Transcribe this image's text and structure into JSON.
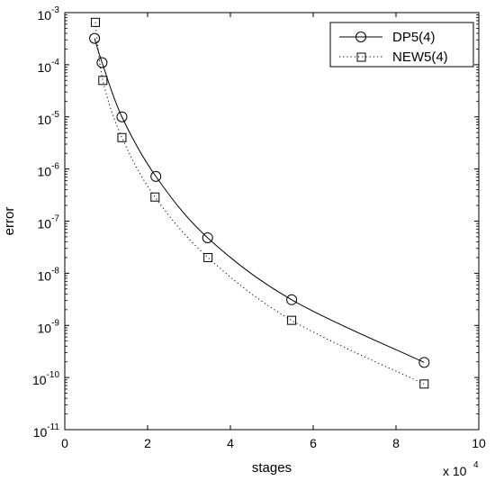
{
  "chart_data": {
    "type": "line",
    "xlabel": "stages",
    "ylabel": "error",
    "x_multiplier_label": "x 10",
    "x_multiplier_exp": "4",
    "xlim": [
      0,
      100000
    ],
    "ylim": [
      1e-11,
      0.001
    ],
    "yscale": "log",
    "grid": false,
    "legend_position": "top-right",
    "x_ticks": [
      0,
      20000,
      40000,
      60000,
      80000,
      100000
    ],
    "x_tick_labels": [
      "0",
      "2",
      "4",
      "6",
      "8",
      "10"
    ],
    "y_ticks": [
      1e-11,
      1e-10,
      1e-09,
      1e-08,
      1e-07,
      1e-06,
      1e-05,
      0.0001,
      0.001
    ],
    "y_tick_exponents": [
      "-11",
      "-10",
      "-9",
      "-8",
      "-7",
      "-6",
      "-5",
      "-4",
      "-3"
    ],
    "y_tick_base": "10",
    "series": [
      {
        "name": "DP5(4)",
        "marker": "circle",
        "line_style": "solid",
        "color": "#000000",
        "x": [
          7200,
          9000,
          13800,
          22000,
          34500,
          54800,
          86800
        ],
        "y": [
          0.00032,
          0.00011,
          1e-05,
          7.2e-07,
          4.8e-08,
          3.1e-09,
          1.95e-10
        ]
      },
      {
        "name": "NEW5(4)",
        "marker": "square",
        "line_style": "dotted",
        "color": "#000000",
        "x": [
          7400,
          9200,
          13800,
          21800,
          34600,
          54800,
          86800
        ],
        "y": [
          0.00065,
          5e-05,
          4e-06,
          2.9e-07,
          2e-08,
          1.25e-09,
          7.5e-11
        ]
      }
    ]
  }
}
